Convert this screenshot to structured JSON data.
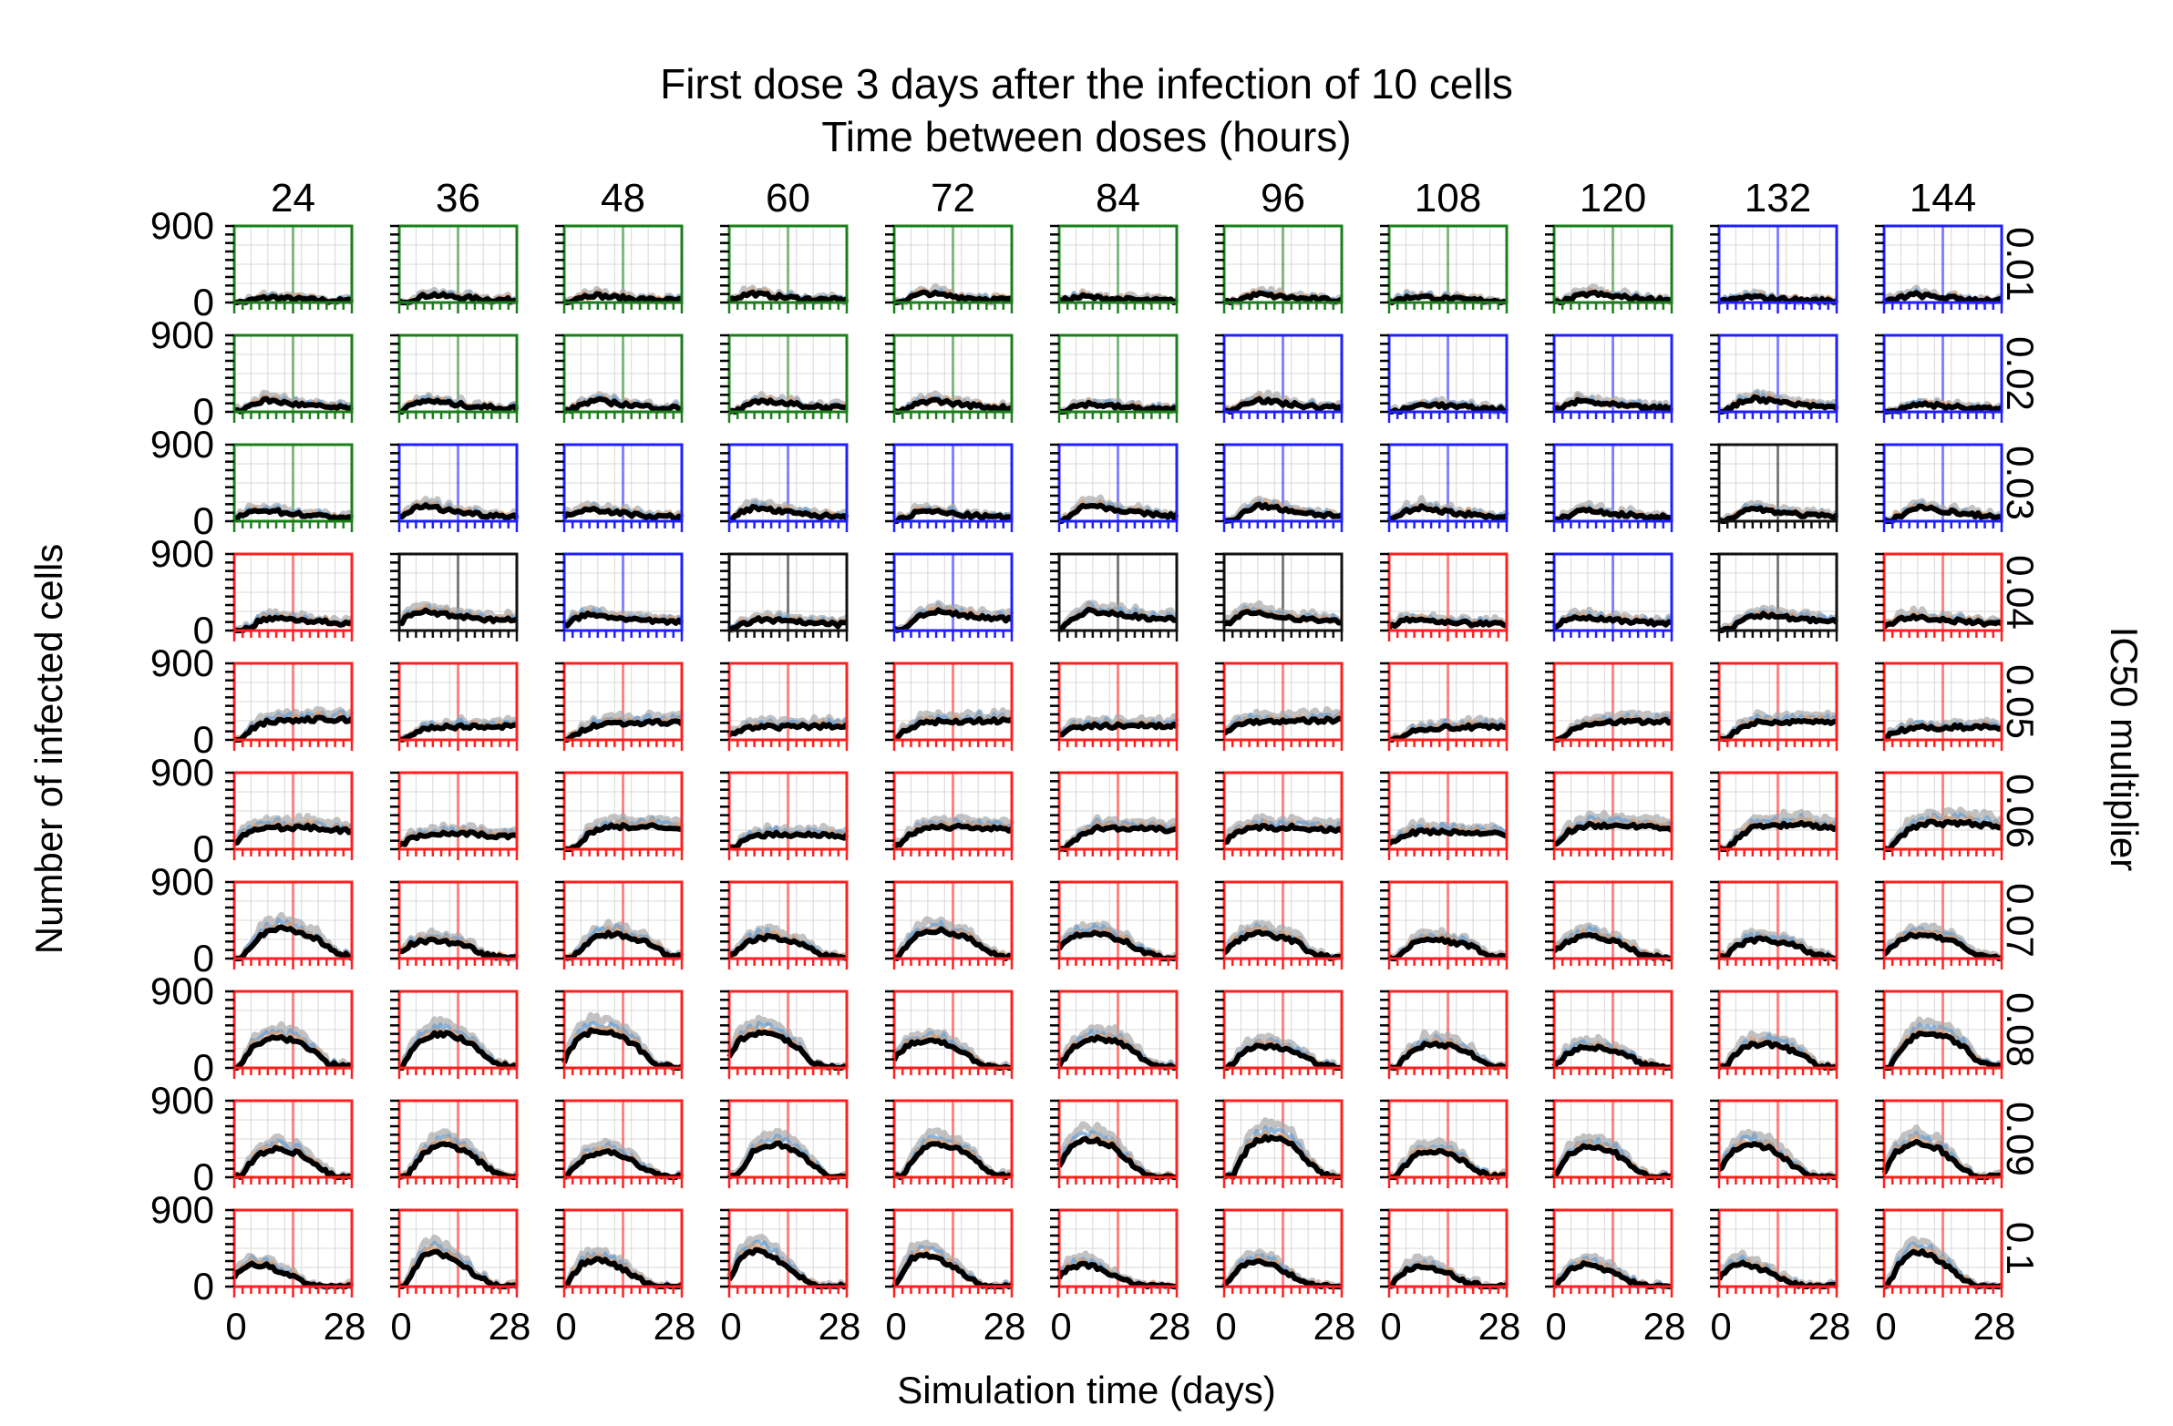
{
  "chart_data": {
    "type": "line",
    "title": "First dose 3 days after the infection of 10 cells",
    "subtitle": "Time between doses (hours)",
    "xlabel": "Simulation time (days)",
    "ylabel": "Number of infected cells",
    "row_axis_label": "IC50 multiplier",
    "xlim": [
      0,
      28
    ],
    "ylim": [
      0,
      900
    ],
    "x_tick_labels": [
      "0",
      "28"
    ],
    "y_tick_labels": [
      "0",
      "900"
    ],
    "columns": [
      "24",
      "36",
      "48",
      "60",
      "72",
      "84",
      "96",
      "108",
      "120",
      "132",
      "144"
    ],
    "rows": [
      "0.01",
      "0.02",
      "0.03",
      "0.04",
      "0.05",
      "0.06",
      "0.07",
      "0.08",
      "0.09",
      "0.1"
    ],
    "frame_colors": {
      "G": "#1a7f1a",
      "B": "#1f1fff",
      "K": "#111111",
      "R": "#ff1f1f"
    },
    "frame_grid": [
      "GGGGGGGGGBB",
      "GGGGGGBBBBB",
      "GBBBBBBBBKB",
      "RKBKBKKRBKR",
      "RRRRRRRRRRR",
      "RRRRRRRRRRR",
      "RRRRRRRRRRR",
      "RRRRRRRRRRR",
      "RRRRRRRRRRR",
      "RRRRRRRRRRR"
    ],
    "dose_line_day": 14,
    "series_colors": {
      "replicate_a": "#6a9fd1",
      "replicate_b": "#e0a070",
      "spread": "#a8a8a8",
      "mean": "#000000"
    },
    "mean_profile_by_row": [
      {
        "row": "0.01",
        "x": [
          0,
          2,
          4,
          7,
          10,
          14,
          18,
          22,
          28
        ],
        "y": [
          0,
          30,
          60,
          90,
          70,
          55,
          40,
          30,
          25
        ]
      },
      {
        "row": "0.02",
        "x": [
          0,
          2,
          4,
          7,
          10,
          14,
          18,
          22,
          28
        ],
        "y": [
          0,
          40,
          90,
          130,
          110,
          85,
          65,
          50,
          40
        ]
      },
      {
        "row": "0.03",
        "x": [
          0,
          2,
          4,
          7,
          10,
          14,
          18,
          22,
          28
        ],
        "y": [
          0,
          50,
          110,
          160,
          140,
          110,
          85,
          65,
          55
        ]
      },
      {
        "row": "0.04",
        "x": [
          0,
          2,
          4,
          7,
          10,
          14,
          18,
          22,
          28
        ],
        "y": [
          0,
          60,
          130,
          180,
          170,
          150,
          130,
          110,
          100
        ]
      },
      {
        "row": "0.05",
        "x": [
          0,
          2,
          4,
          7,
          10,
          14,
          18,
          22,
          28
        ],
        "y": [
          0,
          70,
          130,
          170,
          180,
          180,
          190,
          185,
          190
        ]
      },
      {
        "row": "0.06",
        "x": [
          0,
          2,
          4,
          7,
          10,
          14,
          18,
          22,
          28
        ],
        "y": [
          0,
          90,
          170,
          230,
          250,
          240,
          250,
          230,
          210
        ]
      },
      {
        "row": "0.07",
        "x": [
          0,
          2,
          4,
          7,
          10,
          14,
          18,
          22,
          28
        ],
        "y": [
          0,
          110,
          210,
          280,
          300,
          250,
          200,
          60,
          0
        ]
      },
      {
        "row": "0.08",
        "x": [
          0,
          2,
          4,
          7,
          10,
          14,
          18,
          22,
          28
        ],
        "y": [
          0,
          140,
          260,
          330,
          340,
          300,
          200,
          40,
          0
        ]
      },
      {
        "row": "0.09",
        "x": [
          0,
          2,
          4,
          7,
          10,
          14,
          18,
          22,
          28
        ],
        "y": [
          0,
          150,
          280,
          350,
          360,
          300,
          150,
          20,
          0
        ]
      },
      {
        "row": "0.1",
        "x": [
          0,
          2,
          4,
          7,
          10,
          14,
          18,
          22,
          28
        ],
        "y": [
          0,
          150,
          280,
          330,
          300,
          200,
          80,
          0,
          0
        ]
      }
    ]
  }
}
